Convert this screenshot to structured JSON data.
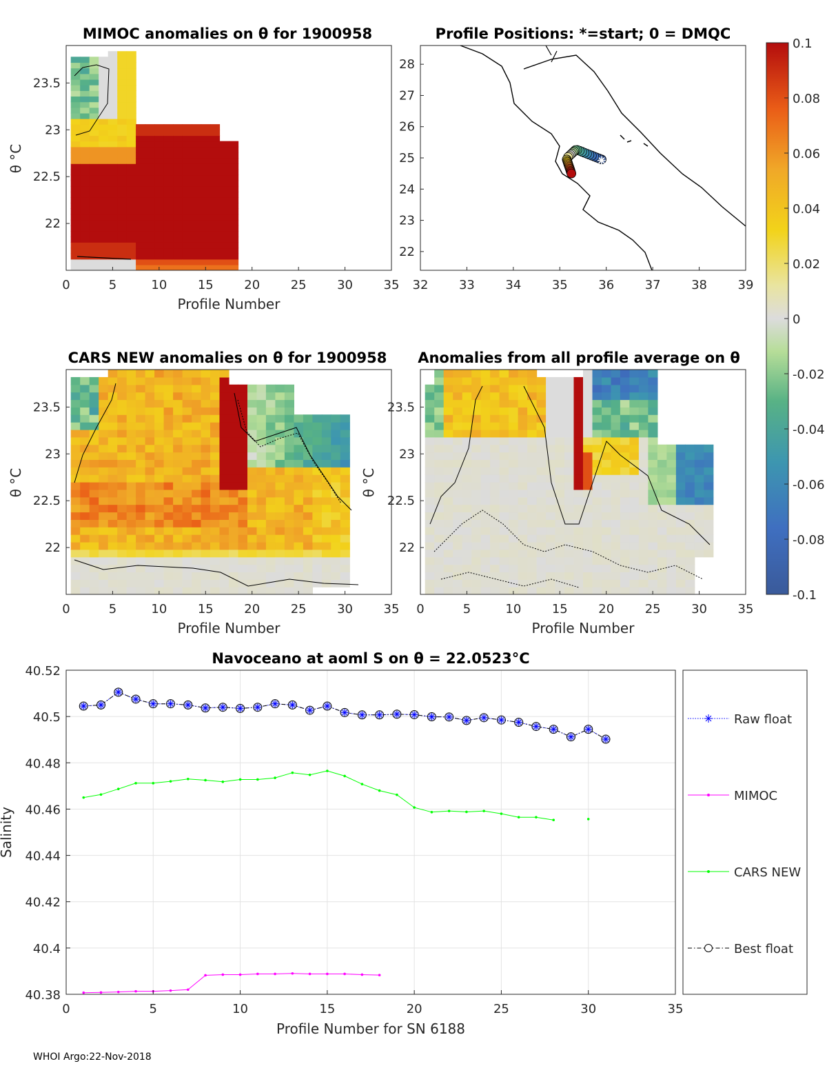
{
  "footer": "WHOI Argo:22-Nov-2018",
  "colorbar": {
    "ticks": [
      "0.1",
      "0.08",
      "0.06",
      "0.04",
      "0.02",
      "0",
      "-0.02",
      "-0.04",
      "-0.06",
      "-0.08",
      "-0.1"
    ],
    "range": [
      -0.1,
      0.1
    ]
  },
  "panels": {
    "mimoc": {
      "title": "MIMOC anomalies on θ  for 1900958",
      "xlabel": "Profile Number",
      "ylabel": "θ °C",
      "xticks": [
        "0",
        "5",
        "10",
        "15",
        "20",
        "25",
        "30",
        "35"
      ],
      "yticks": [
        "23.5",
        "23",
        "22.5",
        "22"
      ]
    },
    "positions": {
      "title": "Profile Positions: *=start; 0 = DMQC",
      "xticks": [
        "32",
        "33",
        "34",
        "35",
        "36",
        "37",
        "38",
        "39"
      ],
      "yticks": [
        "28",
        "27",
        "26",
        "25",
        "24",
        "23",
        "22"
      ]
    },
    "cars": {
      "title": "CARS NEW anomalies on θ for 1900958",
      "xlabel": "Profile Number",
      "ylabel": "θ °C",
      "xticks": [
        "0",
        "5",
        "10",
        "15",
        "20",
        "25",
        "30",
        "35"
      ],
      "yticks": [
        "23.5",
        "23",
        "22.5",
        "22"
      ]
    },
    "avg": {
      "title": "Anomalies from all profile average on θ",
      "xlabel": "Profile Number",
      "ylabel": "θ °C",
      "xticks": [
        "0",
        "5",
        "10",
        "15",
        "20",
        "25",
        "30",
        "35"
      ],
      "yticks": [
        "23.5",
        "23",
        "22.5",
        "22"
      ]
    }
  },
  "chart_data": {
    "type": "line",
    "title": "Navoceano at aoml S on θ = 22.0523°C",
    "xlabel": "Profile Number for SN 6188",
    "ylabel": "Salinity",
    "xlim": [
      0,
      35
    ],
    "ylim": [
      40.38,
      40.52
    ],
    "xticks": [
      "0",
      "5",
      "10",
      "15",
      "20",
      "25",
      "30",
      "35"
    ],
    "yticks": [
      "40.52",
      "40.5",
      "40.48",
      "40.46",
      "40.44",
      "40.42",
      "40.4",
      "40.38"
    ],
    "legend": [
      "Raw float",
      "MIMOC",
      "CARS NEW",
      "Best float"
    ],
    "series": [
      {
        "name": "Raw float",
        "color": "#0000ff",
        "x": [
          1,
          2,
          3,
          4,
          5,
          6,
          7,
          8,
          9,
          10,
          11,
          12,
          13,
          14,
          15,
          16,
          17,
          18,
          19,
          20,
          21,
          22,
          23,
          24,
          25,
          26,
          27,
          28,
          29,
          30,
          31
        ],
        "values": [
          40.5045,
          40.505,
          40.5105,
          40.5075,
          40.5055,
          40.5055,
          40.505,
          40.5037,
          40.504,
          40.5035,
          40.504,
          40.5055,
          40.505,
          40.5027,
          40.5045,
          40.5017,
          40.5007,
          40.5007,
          40.501,
          40.5008,
          40.4999,
          40.4998,
          40.4983,
          40.4995,
          40.4985,
          40.4975,
          40.4957,
          40.4945,
          40.4912,
          40.4945,
          40.4902
        ]
      },
      {
        "name": "MIMOC",
        "color": "#ff00ff",
        "x": [
          1,
          2,
          3,
          4,
          5,
          6,
          7,
          8,
          9,
          10,
          11,
          12,
          13,
          14,
          15,
          16,
          17,
          18
        ],
        "values": [
          40.3807,
          40.3808,
          40.381,
          40.3813,
          40.3813,
          40.3816,
          40.382,
          40.3882,
          40.3885,
          40.3885,
          40.3888,
          40.3888,
          40.389,
          40.3888,
          40.3888,
          40.3888,
          40.3885,
          40.3883
        ]
      },
      {
        "name": "CARS NEW",
        "color": "#00ff00",
        "x": [
          1,
          2,
          3,
          4,
          5,
          6,
          7,
          8,
          9,
          10,
          11,
          12,
          13,
          14,
          15,
          16,
          17,
          18,
          19,
          20,
          21,
          22,
          23,
          24,
          25,
          26,
          27,
          28,
          30
        ],
        "values": [
          40.465,
          40.4663,
          40.4687,
          40.4712,
          40.4712,
          40.472,
          40.473,
          40.4725,
          40.4718,
          40.4728,
          40.4728,
          40.4735,
          40.4757,
          40.4748,
          40.4765,
          40.4743,
          40.4708,
          40.468,
          40.4662,
          40.4607,
          40.4587,
          40.4592,
          40.4588,
          40.4592,
          40.458,
          40.4565,
          40.4565,
          40.4553,
          40.4557
        ]
      },
      {
        "name": "Best float",
        "color": "#000000",
        "x": [
          1,
          2,
          3,
          4,
          5,
          6,
          7,
          8,
          9,
          10,
          11,
          12,
          13,
          14,
          15,
          16,
          17,
          18,
          19,
          20,
          21,
          22,
          23,
          24,
          25,
          26,
          27,
          28,
          29,
          30,
          31
        ],
        "values": [
          40.5045,
          40.505,
          40.5105,
          40.5075,
          40.5055,
          40.5055,
          40.505,
          40.5037,
          40.504,
          40.5035,
          40.504,
          40.5055,
          40.505,
          40.5027,
          40.5045,
          40.5017,
          40.5007,
          40.5007,
          40.501,
          40.5008,
          40.4999,
          40.4998,
          40.4983,
          40.4995,
          40.4985,
          40.4975,
          40.4957,
          40.4945,
          40.4912,
          40.4945,
          40.4902
        ]
      }
    ]
  }
}
